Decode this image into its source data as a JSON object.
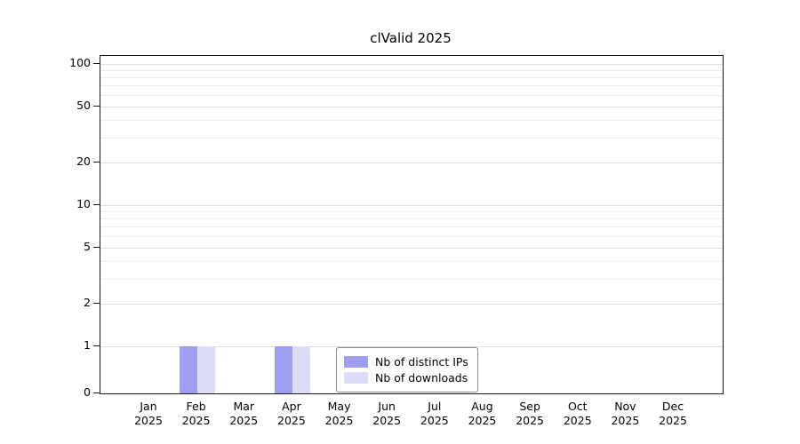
{
  "chart_data": {
    "type": "bar",
    "title": "clValid 2025",
    "months": [
      "Jan",
      "Feb",
      "Mar",
      "Apr",
      "May",
      "Jun",
      "Jul",
      "Aug",
      "Sep",
      "Oct",
      "Nov",
      "Dec"
    ],
    "year": "2025",
    "series": [
      {
        "name": "Nb of distinct IPs",
        "color": "#9f9ef0",
        "values": [
          0,
          1,
          0,
          1,
          0,
          0,
          0,
          0,
          0,
          0,
          0,
          0
        ]
      },
      {
        "name": "Nb of downloads",
        "color": "#dcdcf8",
        "values": [
          0,
          1,
          0,
          1,
          0,
          0,
          0,
          0,
          0,
          0,
          0,
          0
        ]
      }
    ],
    "yticks": [
      0,
      1,
      2,
      5,
      10,
      20,
      50,
      100
    ],
    "ylim": [
      0,
      110
    ],
    "yscale": "log-with-zero-baseline",
    "grid": "horizontal",
    "legend_position": "bottom-center-inside"
  }
}
